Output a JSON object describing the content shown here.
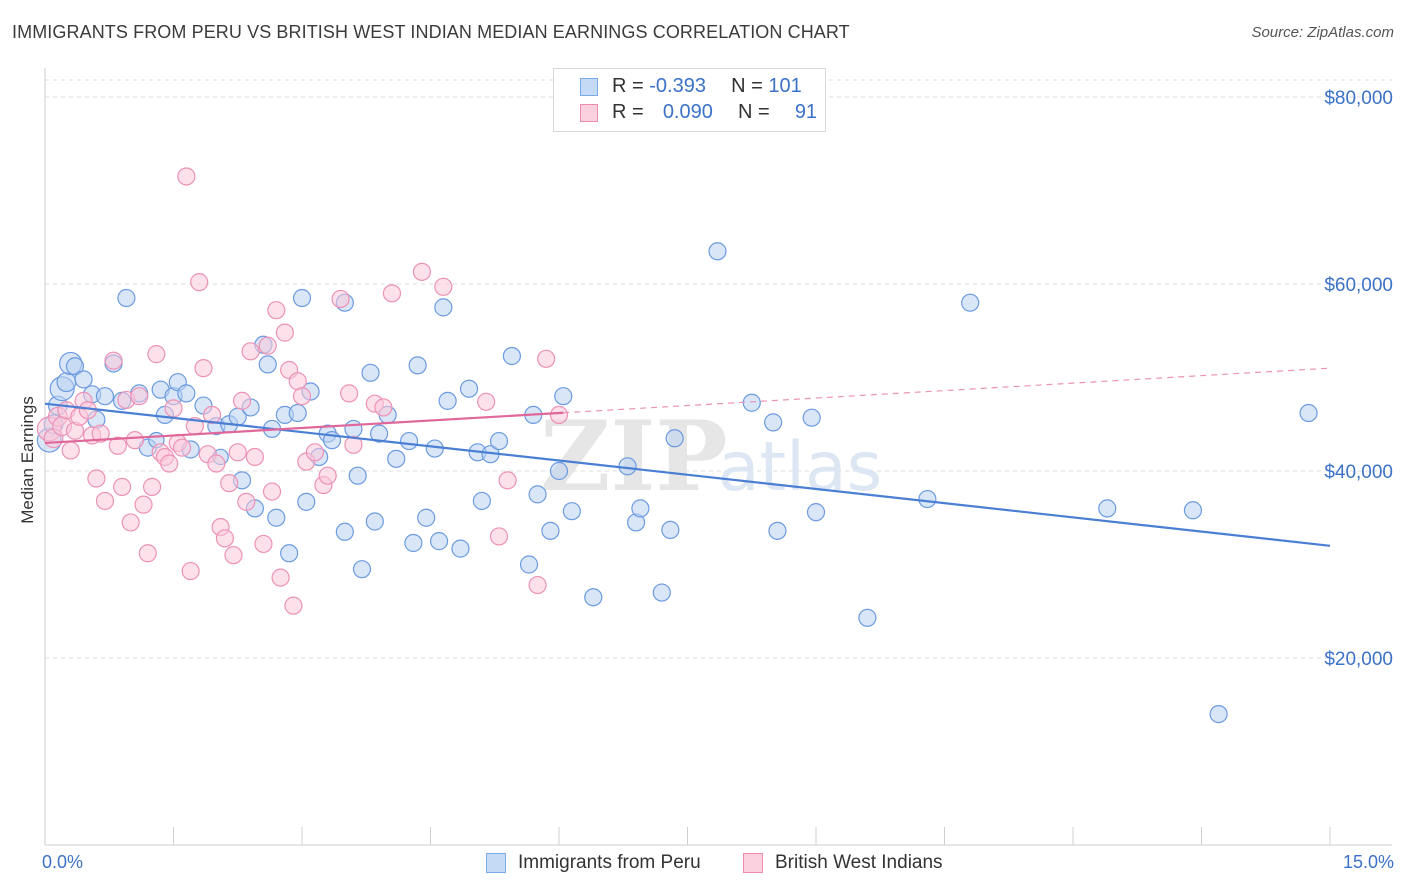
{
  "title": "IMMIGRANTS FROM PERU VS BRITISH WEST INDIAN MEDIAN EARNINGS CORRELATION CHART",
  "source": "Source: ZipAtlas.com",
  "watermark": "ZIPatlas",
  "legend": {
    "rows": [
      {
        "r_label": "R =",
        "r_value": "-0.393",
        "n_label": "N =",
        "n_value": "101",
        "color": "#7aaae8",
        "fill": "#c5daf5"
      },
      {
        "r_label": "R =",
        "r_value": "0.090",
        "n_label": "N =",
        "n_value": "91",
        "color": "#f08cb0",
        "fill": "#fbd0de"
      }
    ]
  },
  "bottom_legend": [
    "Immigrants from Peru",
    "British West Indians"
  ],
  "chart_data": {
    "type": "scatter",
    "title": "IMMIGRANTS FROM PERU VS BRITISH WEST INDIAN MEDIAN EARNINGS CORRELATION CHART",
    "xlabel": "",
    "ylabel": "Median Earnings",
    "xlim": [
      0,
      15
    ],
    "ylim": [
      0,
      80000
    ],
    "x_tick_labels": [
      "0.0%",
      "15.0%"
    ],
    "y_ticks": [
      20000,
      40000,
      60000,
      80000
    ],
    "y_tick_labels": [
      "$20,000",
      "$40,000",
      "$60,000",
      "$80,000"
    ],
    "grid": true,
    "legend_position": "top-center",
    "series": [
      {
        "name": "Immigrants from Peru",
        "color": "#4a7fd4",
        "stroke": "#6c9be0",
        "fill": "#b9d2f2",
        "r": -0.393,
        "n": 101,
        "trend": {
          "x0": 0.0,
          "y0": 47200,
          "x1": 15.0,
          "y1": 32000,
          "solid_until": 15.0
        },
        "points": [
          [
            0.05,
            43300,
            14
          ],
          [
            0.1,
            45000,
            11
          ],
          [
            0.15,
            47000,
            11
          ],
          [
            0.2,
            48800,
            14
          ],
          [
            0.25,
            49500,
            11
          ],
          [
            0.3,
            51500,
            13
          ],
          [
            0.35,
            51200,
            10
          ],
          [
            0.45,
            49800,
            10
          ],
          [
            0.55,
            48200,
            10
          ],
          [
            0.6,
            45500,
            10
          ],
          [
            0.7,
            48000,
            10
          ],
          [
            0.8,
            51500,
            10
          ],
          [
            0.9,
            47500,
            10
          ],
          [
            0.95,
            58500,
            10
          ],
          [
            1.1,
            48300,
            10
          ],
          [
            1.2,
            42500,
            10
          ],
          [
            1.3,
            43300,
            9
          ],
          [
            1.35,
            48700,
            10
          ],
          [
            1.4,
            46000,
            10
          ],
          [
            1.5,
            48000,
            10
          ],
          [
            1.55,
            49500,
            10
          ],
          [
            1.65,
            48300,
            10
          ],
          [
            1.7,
            42300,
            10
          ],
          [
            1.85,
            47000,
            10
          ],
          [
            2.0,
            44800,
            10
          ],
          [
            2.05,
            41500,
            9
          ],
          [
            2.15,
            45000,
            10
          ],
          [
            2.25,
            45800,
            10
          ],
          [
            2.3,
            39000,
            10
          ],
          [
            2.4,
            46800,
            10
          ],
          [
            2.45,
            36000,
            10
          ],
          [
            2.55,
            53500,
            10
          ],
          [
            2.6,
            51400,
            10
          ],
          [
            2.65,
            44500,
            10
          ],
          [
            2.7,
            35000,
            10
          ],
          [
            2.8,
            46000,
            10
          ],
          [
            2.85,
            31200,
            10
          ],
          [
            2.95,
            46200,
            10
          ],
          [
            3.0,
            58500,
            10
          ],
          [
            3.05,
            36700,
            10
          ],
          [
            3.1,
            48500,
            10
          ],
          [
            3.2,
            41500,
            10
          ],
          [
            3.3,
            44000,
            10
          ],
          [
            3.35,
            43300,
            10
          ],
          [
            3.5,
            58000,
            10
          ],
          [
            3.5,
            33500,
            10
          ],
          [
            3.6,
            44500,
            10
          ],
          [
            3.65,
            39500,
            10
          ],
          [
            3.7,
            29500,
            10
          ],
          [
            3.8,
            50500,
            10
          ],
          [
            3.85,
            34600,
            10
          ],
          [
            3.9,
            44000,
            10
          ],
          [
            4.0,
            46000,
            10
          ],
          [
            4.1,
            41300,
            10
          ],
          [
            4.25,
            43200,
            10
          ],
          [
            4.3,
            32300,
            10
          ],
          [
            4.35,
            51300,
            10
          ],
          [
            4.45,
            35000,
            10
          ],
          [
            4.55,
            42400,
            10
          ],
          [
            4.6,
            32500,
            10
          ],
          [
            4.65,
            57500,
            10
          ],
          [
            4.7,
            47500,
            10
          ],
          [
            4.85,
            31700,
            10
          ],
          [
            4.95,
            48800,
            10
          ],
          [
            5.05,
            42000,
            10
          ],
          [
            5.1,
            36800,
            10
          ],
          [
            5.2,
            41800,
            10
          ],
          [
            5.3,
            43200,
            10
          ],
          [
            5.45,
            52300,
            10
          ],
          [
            5.65,
            30000,
            10
          ],
          [
            5.7,
            46000,
            10
          ],
          [
            5.75,
            37500,
            10
          ],
          [
            5.9,
            33600,
            10
          ],
          [
            6.0,
            40000,
            10
          ],
          [
            6.05,
            48000,
            10
          ],
          [
            6.15,
            35700,
            10
          ],
          [
            6.4,
            26500,
            10
          ],
          [
            6.8,
            40500,
            10
          ],
          [
            6.9,
            34500,
            10
          ],
          [
            6.95,
            36000,
            10
          ],
          [
            7.2,
            27000,
            10
          ],
          [
            7.3,
            33700,
            10
          ],
          [
            7.35,
            43500,
            10
          ],
          [
            7.85,
            63500,
            10
          ],
          [
            8.25,
            47300,
            10
          ],
          [
            8.5,
            45200,
            10
          ],
          [
            8.55,
            33600,
            10
          ],
          [
            8.95,
            45700,
            10
          ],
          [
            9.0,
            35600,
            10
          ],
          [
            9.6,
            24300,
            10
          ],
          [
            10.3,
            37000,
            10
          ],
          [
            10.8,
            58000,
            10
          ],
          [
            12.4,
            36000,
            10
          ],
          [
            13.4,
            35800,
            10
          ],
          [
            13.7,
            14000,
            10
          ],
          [
            14.75,
            46200,
            10
          ]
        ]
      },
      {
        "name": "British West Indians",
        "color": "#e0679a",
        "stroke": "#ec92b6",
        "fill": "#f9c8da",
        "r": 0.09,
        "n": 91,
        "trend": {
          "x0": 0.0,
          "y0": 43000,
          "x1": 15.0,
          "y1": 51000,
          "solid_until": 6.05
        },
        "points": [
          [
            0.05,
            44500,
            14
          ],
          [
            0.1,
            43500,
            11
          ],
          [
            0.15,
            45800,
            11
          ],
          [
            0.2,
            44800,
            11
          ],
          [
            0.25,
            46500,
            10
          ],
          [
            0.3,
            42200,
            10
          ],
          [
            0.35,
            44300,
            10
          ],
          [
            0.4,
            45800,
            10
          ],
          [
            0.45,
            47500,
            10
          ],
          [
            0.5,
            46500,
            10
          ],
          [
            0.55,
            43800,
            10
          ],
          [
            0.6,
            39200,
            10
          ],
          [
            0.65,
            44000,
            10
          ],
          [
            0.7,
            36800,
            10
          ],
          [
            0.8,
            51800,
            10
          ],
          [
            0.85,
            42700,
            10
          ],
          [
            0.9,
            38300,
            10
          ],
          [
            0.95,
            47600,
            10
          ],
          [
            1.0,
            34500,
            10
          ],
          [
            1.05,
            43300,
            10
          ],
          [
            1.1,
            48000,
            10
          ],
          [
            1.15,
            36400,
            10
          ],
          [
            1.2,
            31200,
            10
          ],
          [
            1.25,
            38300,
            10
          ],
          [
            1.3,
            52500,
            10
          ],
          [
            1.35,
            42000,
            10
          ],
          [
            1.4,
            41500,
            10
          ],
          [
            1.45,
            40800,
            10
          ],
          [
            1.5,
            46700,
            10
          ],
          [
            1.55,
            43000,
            10
          ],
          [
            1.6,
            42500,
            10
          ],
          [
            1.65,
            71500,
            10
          ],
          [
            1.7,
            29300,
            10
          ],
          [
            1.75,
            44800,
            10
          ],
          [
            1.8,
            60200,
            10
          ],
          [
            1.85,
            51000,
            10
          ],
          [
            1.9,
            41800,
            10
          ],
          [
            1.95,
            46000,
            10
          ],
          [
            2.0,
            40800,
            10
          ],
          [
            2.05,
            34000,
            10
          ],
          [
            2.1,
            32800,
            10
          ],
          [
            2.15,
            38700,
            10
          ],
          [
            2.2,
            31000,
            10
          ],
          [
            2.25,
            42000,
            10
          ],
          [
            2.3,
            47500,
            10
          ],
          [
            2.35,
            36700,
            10
          ],
          [
            2.4,
            52800,
            10
          ],
          [
            2.45,
            41500,
            10
          ],
          [
            2.55,
            32200,
            10
          ],
          [
            2.6,
            53400,
            10
          ],
          [
            2.65,
            37800,
            10
          ],
          [
            2.7,
            57200,
            10
          ],
          [
            2.75,
            28600,
            10
          ],
          [
            2.8,
            54800,
            10
          ],
          [
            2.85,
            50800,
            10
          ],
          [
            2.9,
            25600,
            10
          ],
          [
            2.95,
            49600,
            10
          ],
          [
            3.0,
            48000,
            10
          ],
          [
            3.05,
            41000,
            10
          ],
          [
            3.15,
            42000,
            10
          ],
          [
            3.25,
            38500,
            10
          ],
          [
            3.3,
            39500,
            10
          ],
          [
            3.45,
            58400,
            10
          ],
          [
            3.55,
            48300,
            10
          ],
          [
            3.6,
            42800,
            10
          ],
          [
            3.85,
            47200,
            10
          ],
          [
            3.95,
            46800,
            10
          ],
          [
            4.05,
            59000,
            10
          ],
          [
            4.4,
            61300,
            10
          ],
          [
            4.65,
            59700,
            10
          ],
          [
            5.15,
            47400,
            10
          ],
          [
            5.3,
            33000,
            10
          ],
          [
            5.4,
            39000,
            10
          ],
          [
            5.75,
            27800,
            10
          ],
          [
            5.85,
            52000,
            10
          ],
          [
            6.0,
            46000,
            10
          ]
        ]
      }
    ]
  }
}
